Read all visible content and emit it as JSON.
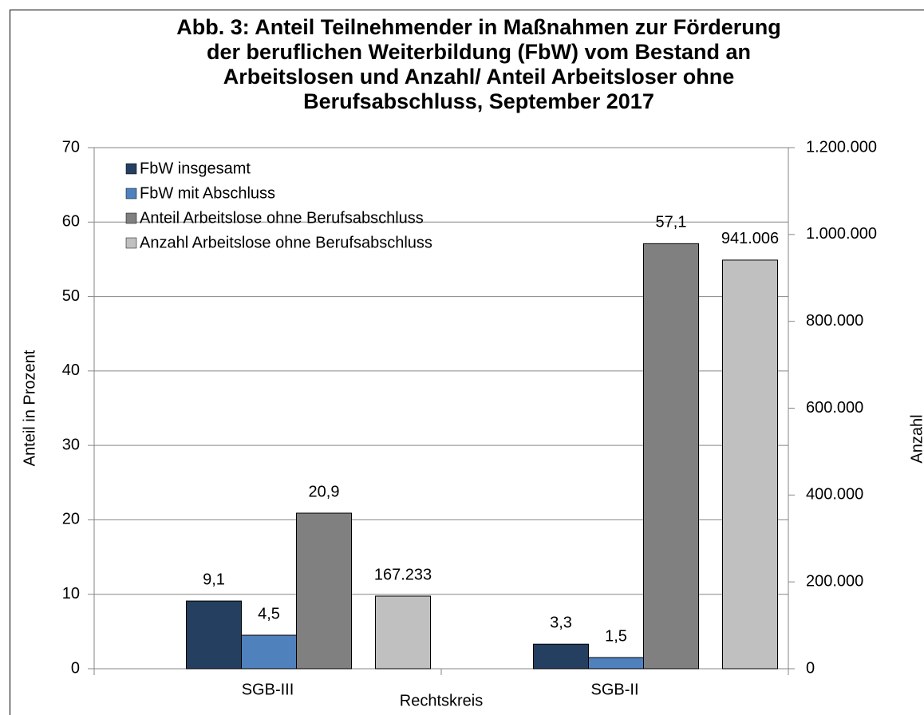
{
  "chart_data": {
    "type": "bar",
    "title": [
      "Abb. 3: Anteil Teilnehmender in Maßnahmen zur Förderung",
      "der beruflichen Weiterbildung (FbW) vom Bestand an",
      "Arbeitslosen und Anzahl/ Anteil Arbeitsloser ohne",
      "Berufsabschluss, September 2017"
    ],
    "x_label": "Rechtskreis",
    "y_label": "Anteil in Prozent",
    "y2_label": "Anzahl",
    "categories": [
      "SGB-III",
      "SGB-II"
    ],
    "series": [
      {
        "name": "FbW insgesamt",
        "color": "#243f60",
        "values": [
          9.1,
          3.3
        ],
        "value_labels": [
          "9,1",
          "3,3"
        ]
      },
      {
        "name": "FbW mit Abschluss",
        "color": "#4f81bd",
        "values": [
          4.5,
          1.5
        ],
        "value_labels": [
          "4,5",
          "1,5"
        ]
      },
      {
        "name": "Anteil Arbeitslose ohne Berufsabschluss",
        "color": "#808080",
        "values": [
          20.9,
          57.1
        ],
        "value_labels": [
          "20,9",
          "57,1"
        ]
      },
      {
        "name": "Anzahl Arbeitslose ohne Berufsabschluss",
        "color": "#c0c0c0",
        "axis": "y2",
        "values": [
          167233,
          941006
        ],
        "value_labels": [
          "167.233",
          "941.006"
        ]
      }
    ],
    "ylim": [
      0,
      70
    ],
    "yticks": [
      0,
      10,
      20,
      30,
      40,
      50,
      60,
      70
    ],
    "y2lim": [
      0,
      1200000
    ],
    "y2ticks": [
      0,
      {
        "value": 200000,
        "label": "200.000"
      },
      {
        "value": 400000,
        "label": "400.000"
      },
      {
        "value": 600000,
        "label": "600.000"
      },
      {
        "value": 800000,
        "label": "800.000"
      },
      {
        "value": 1000000,
        "label": "1.000.000"
      },
      {
        "value": 1200000,
        "label": "1.200.000"
      }
    ],
    "grid": true,
    "legend": "upper left"
  }
}
